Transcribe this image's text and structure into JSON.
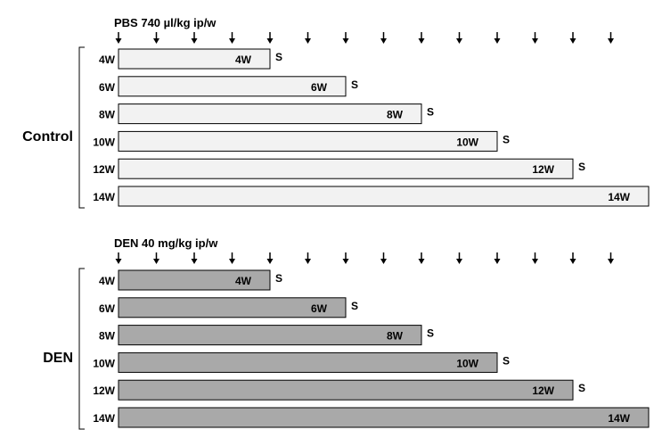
{
  "colors": {
    "control_bar": "#f2f2f2",
    "den_bar": "#a9a9a9",
    "ink": "#000000"
  },
  "panels": [
    {
      "id": "control",
      "group_label": "Control",
      "treatment_label": "PBS 740 µl/kg ip/w",
      "injection_arrow_count": 14,
      "bar_color_key": "control_bar",
      "end_marker": "S",
      "rows": [
        {
          "label": "4W",
          "bar_label": "4W",
          "weeks": 4
        },
        {
          "label": "6W",
          "bar_label": "6W",
          "weeks": 6
        },
        {
          "label": "8W",
          "bar_label": "8W",
          "weeks": 8
        },
        {
          "label": "10W",
          "bar_label": "10W",
          "weeks": 10
        },
        {
          "label": "12W",
          "bar_label": "12W",
          "weeks": 12
        },
        {
          "label": "14W",
          "bar_label": "14W",
          "weeks": 14
        }
      ]
    },
    {
      "id": "den",
      "group_label": "DEN",
      "treatment_label": "DEN 40 mg/kg ip/w",
      "injection_arrow_count": 14,
      "bar_color_key": "den_bar",
      "end_marker": "S",
      "rows": [
        {
          "label": "4W",
          "bar_label": "4W",
          "weeks": 4
        },
        {
          "label": "6W",
          "bar_label": "6W",
          "weeks": 6
        },
        {
          "label": "8W",
          "bar_label": "8W",
          "weeks": 8
        },
        {
          "label": "10W",
          "bar_label": "10W",
          "weeks": 10
        },
        {
          "label": "12W",
          "bar_label": "12W",
          "weeks": 12
        },
        {
          "label": "14W",
          "bar_label": "14W",
          "weeks": 14
        }
      ]
    }
  ]
}
